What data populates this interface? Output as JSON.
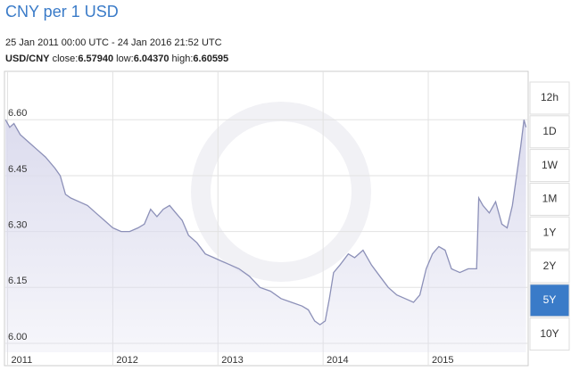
{
  "chart_data": {
    "type": "area",
    "title": "CNY per 1 USD",
    "subtitle": "25 Jan 2011 00:00 UTC - 24 Jan 2016 21:52 UTC",
    "pair": "USD/CNY",
    "stats": [
      {
        "label": "close:",
        "value": "6.57940"
      },
      {
        "label": "low:",
        "value": "6.04370"
      },
      {
        "label": "high:",
        "value": "6.60595"
      }
    ],
    "x": [
      2010.98,
      2011.02,
      2011.06,
      2011.12,
      2011.2,
      2011.28,
      2011.36,
      2011.45,
      2011.5,
      2011.55,
      2011.6,
      2011.68,
      2011.76,
      2011.84,
      2011.92,
      2012.0,
      2012.08,
      2012.16,
      2012.24,
      2012.3,
      2012.36,
      2012.42,
      2012.48,
      2012.54,
      2012.6,
      2012.66,
      2012.72,
      2012.8,
      2012.88,
      2012.96,
      2013.04,
      2013.12,
      2013.2,
      2013.3,
      2013.4,
      2013.5,
      2013.6,
      2013.7,
      2013.8,
      2013.86,
      2013.92,
      2013.97,
      2014.02,
      2014.06,
      2014.1,
      2014.16,
      2014.24,
      2014.3,
      2014.38,
      2014.46,
      2014.54,
      2014.62,
      2014.7,
      2014.78,
      2014.86,
      2014.92,
      2014.98,
      2015.04,
      2015.1,
      2015.16,
      2015.22,
      2015.3,
      2015.38,
      2015.46,
      2015.48,
      2015.52,
      2015.58,
      2015.64,
      2015.7,
      2015.75,
      2015.8,
      2015.84,
      2015.88,
      2015.91,
      2015.93
    ],
    "values": [
      6.6,
      6.58,
      6.59,
      6.56,
      6.54,
      6.52,
      6.5,
      6.47,
      6.45,
      6.4,
      6.39,
      6.38,
      6.37,
      6.35,
      6.33,
      6.31,
      6.3,
      6.3,
      6.31,
      6.32,
      6.36,
      6.34,
      6.36,
      6.37,
      6.35,
      6.33,
      6.29,
      6.27,
      6.24,
      6.23,
      6.22,
      6.21,
      6.2,
      6.18,
      6.15,
      6.14,
      6.12,
      6.11,
      6.1,
      6.09,
      6.06,
      6.05,
      6.06,
      6.12,
      6.19,
      6.21,
      6.24,
      6.23,
      6.25,
      6.21,
      6.18,
      6.15,
      6.13,
      6.12,
      6.11,
      6.13,
      6.2,
      6.24,
      6.26,
      6.25,
      6.2,
      6.19,
      6.2,
      6.2,
      6.39,
      6.37,
      6.35,
      6.38,
      6.32,
      6.31,
      6.37,
      6.45,
      6.53,
      6.6,
      6.58
    ],
    "color": "#8c90b8",
    "fill": "#dcdcee",
    "xlim": [
      2010.97,
      2015.95
    ],
    "xticks": [
      2011,
      2012,
      2013,
      2014,
      2015
    ],
    "ylim": [
      5.976,
      6.73
    ],
    "yticks": [
      {
        "value": 6.0,
        "label": "6.00"
      },
      {
        "value": 6.15,
        "label": "6.15"
      },
      {
        "value": 6.3,
        "label": "6.30"
      },
      {
        "value": 6.45,
        "label": "6.45"
      },
      {
        "value": 6.6,
        "label": "6.60"
      }
    ],
    "grid": true
  },
  "range_buttons": [
    "12h",
    "1D",
    "1W",
    "1M",
    "1Y",
    "2Y",
    "5Y",
    "10Y"
  ],
  "active_range": "5Y"
}
